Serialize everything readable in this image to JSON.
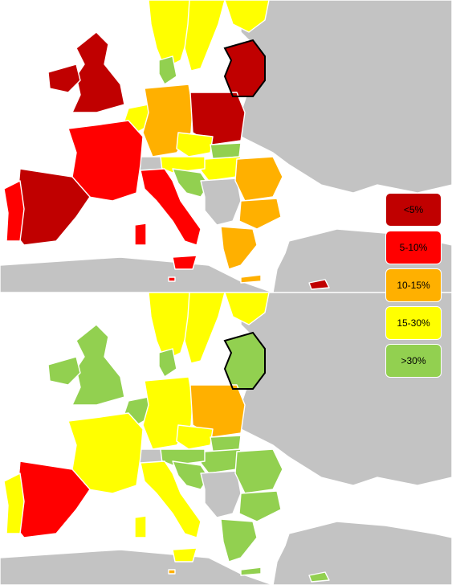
{
  "colors": {
    "non_data": "#c3c3c3",
    "sea": "#ffffff",
    "border": "#ffffff"
  },
  "legend": [
    {
      "label": "<5%",
      "color": "#c00000"
    },
    {
      "label": "5-10%",
      "color": "#ff0000"
    },
    {
      "label": "10-15%",
      "color": "#ffb000"
    },
    {
      "label": "15-30%",
      "color": "#ffff00"
    },
    {
      "label": ">30%",
      "color": "#92d050"
    }
  ],
  "maps": [
    {
      "id": "top",
      "regions": {
        "scandinavia-norway": "#ffff00",
        "sweden": "#ffff00",
        "finland": "#ffff00",
        "denmark": "#92d050",
        "uk": "#c00000",
        "ireland": "#c00000",
        "baltics": "#c00000",
        "benelux": "#ffff00",
        "germany": "#ffb000",
        "poland": "#c00000",
        "czechia": "#ffff00",
        "slovakia": "#92d050",
        "hungary": "#ffff00",
        "austria": "#ffff00",
        "switzerland": "#c3c3c3",
        "france": "#ff0000",
        "spain": "#c00000",
        "portugal": "#ff0000",
        "italy": "#ff0000",
        "sicily": "#ff0000",
        "sardinia": "#ff0000",
        "slovenia-croatia": "#92d050",
        "balkans": "#c3c3c3",
        "romania": "#ffb000",
        "bulgaria": "#ffb000",
        "greece": "#ffb000",
        "crete": "#ffb000",
        "cyprus": "#c00000",
        "malta": "#ff0000",
        "baltic-outlined": true
      }
    },
    {
      "id": "bottom",
      "regions": {
        "scandinavia-norway": "#ffff00",
        "sweden": "#ffff00",
        "finland": "#ffff00",
        "denmark": "#92d050",
        "uk": "#92d050",
        "ireland": "#92d050",
        "baltics": "#92d050",
        "benelux": "#92d050",
        "germany": "#ffff00",
        "poland": "#ffb000",
        "czechia": "#ffff00",
        "slovakia": "#92d050",
        "hungary": "#92d050",
        "austria": "#92d050",
        "switzerland": "#c3c3c3",
        "france": "#ffff00",
        "spain": "#ff0000",
        "portugal": "#ffff00",
        "italy": "#ffff00",
        "sicily": "#ffff00",
        "sardinia": "#ffff00",
        "slovenia-croatia": "#92d050",
        "balkans": "#c3c3c3",
        "romania": "#92d050",
        "bulgaria": "#92d050",
        "greece": "#92d050",
        "crete": "#92d050",
        "cyprus": "#92d050",
        "malta": "#ffb000",
        "baltic-outlined": true
      }
    }
  ]
}
